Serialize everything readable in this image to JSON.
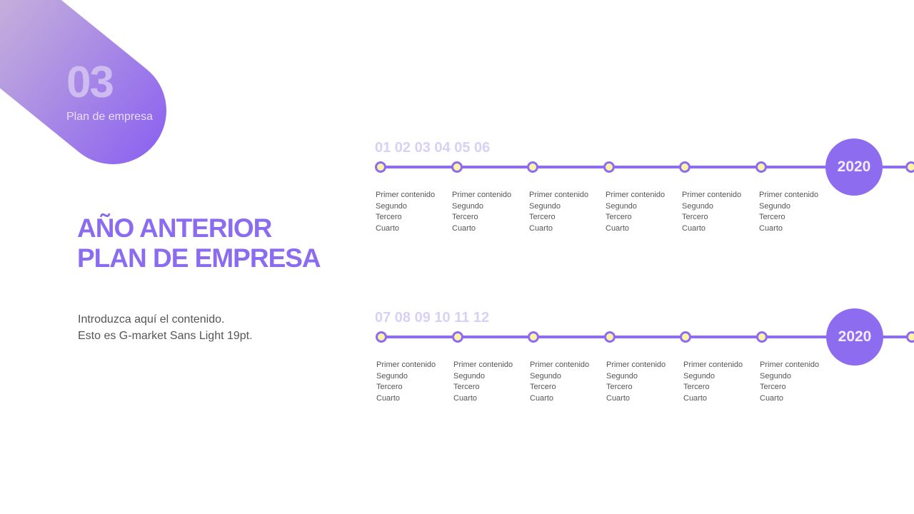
{
  "badge": {
    "number": "03",
    "subtitle": "Plan de empresa"
  },
  "heading": {
    "line1": "AÑO ANTERIOR",
    "line2": "PLAN DE EMPRESA"
  },
  "body": {
    "line1": "Introduzca aquí el contenido.",
    "line2": "Esto es G-market Sans Light 19pt."
  },
  "colors": {
    "accent": "#8e6cf0",
    "dot_fill": "#fbf3a6",
    "numbers": "#d9d0f6"
  },
  "timelines": [
    {
      "numbers": "01 02 03 04 05 06",
      "year": "2020",
      "items": [
        [
          "Primer contenido",
          "Segundo",
          "Tercero",
          "Cuarto"
        ],
        [
          "Primer contenido",
          "Segundo",
          "Tercero",
          "Cuarto"
        ],
        [
          "Primer contenido",
          "Segundo",
          "Tercero",
          "Cuarto"
        ],
        [
          "Primer contenido",
          "Segundo",
          "Tercero",
          "Cuarto"
        ],
        [
          "Primer contenido",
          "Segundo",
          "Tercero",
          "Cuarto"
        ],
        [
          "Primer contenido",
          "Segundo",
          "Tercero",
          "Cuarto"
        ]
      ]
    },
    {
      "numbers": "07 08 09 10 11 12",
      "year": "2020",
      "items": [
        [
          "Primer contenido",
          "Segundo",
          "Tercero",
          "Cuarto"
        ],
        [
          "Primer contenido",
          "Segundo",
          "Tercero",
          "Cuarto"
        ],
        [
          "Primer contenido",
          "Segundo",
          "Tercero",
          "Cuarto"
        ],
        [
          "Primer contenido",
          "Segundo",
          "Tercero",
          "Cuarto"
        ],
        [
          "Primer contenido",
          "Segundo",
          "Tercero",
          "Cuarto"
        ],
        [
          "Primer contenido",
          "Segundo",
          "Tercero",
          "Cuarto"
        ]
      ]
    }
  ]
}
